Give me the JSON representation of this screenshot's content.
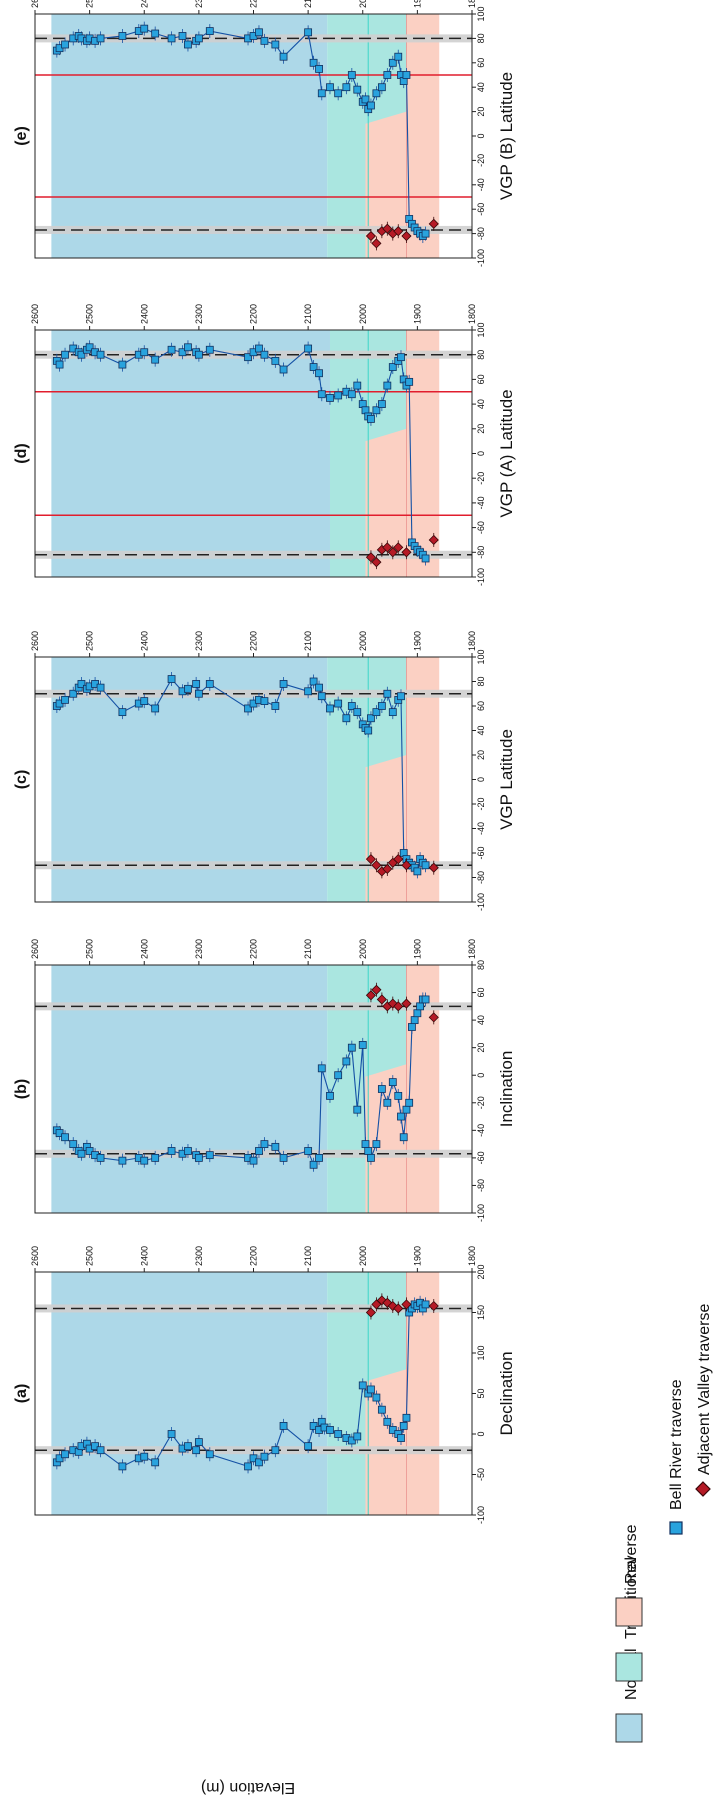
{
  "figure": {
    "y_axis_label": "Elevation (m)",
    "colors": {
      "normal": "#add8e8",
      "transitional": "#aae6e0",
      "reverse": "#fbd0c3",
      "bell": "#29a3de",
      "bell_edge": "#12305e",
      "bell_line": "#1451a5",
      "adjacent": "#b51a26",
      "adjacent_edge": "#3a0709",
      "red_line": "#e11d2d",
      "cyan_line": "#3cd5c8",
      "grey_band": "#cfcfcf"
    },
    "legend": {
      "zones": [
        {
          "label": "Normal",
          "color": "#add8e8"
        },
        {
          "label": "Transitional",
          "color": "#aae6e0"
        },
        {
          "label": "Reverse",
          "color": "#fbd0c3"
        }
      ],
      "series": [
        {
          "label": "Bell River traverse",
          "marker": "square",
          "color": "#29a3de"
        },
        {
          "label": "Adjacent Valley traverse",
          "marker": "diamond",
          "color": "#b51a26"
        }
      ]
    }
  },
  "chart_data": [
    {
      "type": "scatter",
      "panel_label": "(a)",
      "xlabel": "Declination",
      "ylabel": "Elevation (m)",
      "xlim": [
        -100,
        200
      ],
      "xticks": [
        -100,
        -50,
        0,
        50,
        100,
        150,
        200
      ],
      "ylim": [
        1800,
        2600
      ],
      "yticks": [
        1800,
        1900,
        2000,
        2100,
        2200,
        2300,
        2400,
        2500,
        2600
      ],
      "zones": [
        {
          "name": "Normal",
          "from": 2065,
          "to": 2570
        },
        {
          "name": "Transitional",
          "from": 1920,
          "to": 2065
        },
        {
          "name": "Reverse",
          "from": 1860,
          "to": 1995
        }
      ],
      "reference_lines": [
        {
          "value": -20,
          "style": "dashed"
        },
        {
          "value": 155,
          "style": "dashed"
        }
      ],
      "series": [
        {
          "name": "Bell River traverse",
          "marker": "square",
          "x": [
            -35,
            -30,
            -25,
            -20,
            -22,
            -15,
            -12,
            -18,
            -15,
            -20,
            -40,
            -30,
            -28,
            -35,
            0,
            -18,
            -15,
            -20,
            -10,
            -25,
            -40,
            -30,
            -35,
            -28,
            -20,
            10,
            -15,
            10,
            5,
            15,
            8,
            5,
            0,
            -5,
            -8,
            -3,
            60,
            50,
            55,
            45,
            30,
            15,
            5,
            0,
            -5,
            10,
            20,
            150,
            155,
            160,
            158,
            162,
            155,
            160
          ],
          "y": [
            2560,
            2555,
            2545,
            2530,
            2520,
            2515,
            2505,
            2500,
            2490,
            2480,
            2440,
            2410,
            2400,
            2380,
            2350,
            2330,
            2320,
            2305,
            2300,
            2280,
            2210,
            2200,
            2190,
            2180,
            2160,
            2145,
            2100,
            2090,
            2080,
            2075,
            2070,
            2060,
            2045,
            2030,
            2020,
            2010,
            2000,
            1990,
            1985,
            1975,
            1965,
            1955,
            1945,
            1935,
            1930,
            1925,
            1920,
            1915,
            1910,
            1905,
            1900,
            1895,
            1890,
            1885
          ]
        },
        {
          "name": "Adjacent Valley traverse",
          "marker": "diamond",
          "x": [
            150,
            160,
            165,
            162,
            158,
            155,
            160,
            158
          ],
          "y": [
            1985,
            1975,
            1965,
            1955,
            1945,
            1935,
            1920,
            1870
          ]
        }
      ]
    },
    {
      "type": "scatter",
      "panel_label": "(b)",
      "xlabel": "Inclination",
      "ylabel": "Elevation (m)",
      "xlim": [
        -100,
        80
      ],
      "xticks": [
        -100,
        -80,
        -60,
        -40,
        -20,
        0,
        20,
        40,
        60,
        80
      ],
      "ylim": [
        1800,
        2600
      ],
      "yticks": [
        1800,
        1900,
        2000,
        2100,
        2200,
        2300,
        2400,
        2500,
        2600
      ],
      "zones": [
        {
          "name": "Normal",
          "from": 2065,
          "to": 2570
        },
        {
          "name": "Transitional",
          "from": 1920,
          "to": 2065
        },
        {
          "name": "Reverse",
          "from": 1860,
          "to": 1995
        }
      ],
      "reference_lines": [
        {
          "value": -57,
          "style": "dashed"
        },
        {
          "value": 50,
          "style": "dashed"
        }
      ],
      "series": [
        {
          "name": "Bell River traverse",
          "marker": "square",
          "x": [
            -40,
            -42,
            -45,
            -50,
            -55,
            -57,
            -52,
            -55,
            -58,
            -60,
            -62,
            -60,
            -62,
            -60,
            -55,
            -57,
            -55,
            -58,
            -60,
            -58,
            -60,
            -62,
            -55,
            -50,
            -52,
            -60,
            -55,
            -65,
            -60,
            5,
            -15,
            0,
            10,
            20,
            -25,
            22,
            -50,
            -55,
            -60,
            -50,
            -10,
            -20,
            -5,
            -15,
            -30,
            -45,
            -25,
            -20,
            35,
            40,
            45,
            50,
            55,
            55
          ],
          "y": [
            2560,
            2555,
            2545,
            2530,
            2520,
            2515,
            2505,
            2500,
            2490,
            2480,
            2440,
            2410,
            2400,
            2380,
            2350,
            2330,
            2320,
            2305,
            2300,
            2280,
            2210,
            2200,
            2190,
            2180,
            2160,
            2145,
            2100,
            2090,
            2080,
            2075,
            2060,
            2045,
            2030,
            2020,
            2010,
            2000,
            1995,
            1990,
            1985,
            1975,
            1965,
            1955,
            1945,
            1935,
            1930,
            1925,
            1920,
            1915,
            1910,
            1905,
            1900,
            1895,
            1890,
            1885
          ]
        },
        {
          "name": "Adjacent Valley traverse",
          "marker": "diamond",
          "x": [
            58,
            62,
            55,
            50,
            52,
            50,
            52,
            42
          ],
          "y": [
            1985,
            1975,
            1965,
            1955,
            1945,
            1935,
            1920,
            1870
          ]
        }
      ]
    },
    {
      "type": "scatter",
      "panel_label": "(c)",
      "xlabel": "VGP Latitude",
      "ylabel": "Elevation (m)",
      "xlim": [
        -100,
        100
      ],
      "xticks": [
        -100,
        -80,
        -60,
        -40,
        -20,
        0,
        20,
        40,
        60,
        80,
        100
      ],
      "ylim": [
        1800,
        2600
      ],
      "yticks": [
        1800,
        1900,
        2000,
        2100,
        2200,
        2300,
        2400,
        2500,
        2600
      ],
      "zones": [
        {
          "name": "Normal",
          "from": 2065,
          "to": 2570
        },
        {
          "name": "Transitional",
          "from": 1920,
          "to": 2065
        },
        {
          "name": "Reverse",
          "from": 1860,
          "to": 1995
        }
      ],
      "reference_lines": [
        {
          "value": -70,
          "style": "dashed"
        },
        {
          "value": 70,
          "style": "dashed"
        }
      ],
      "series": [
        {
          "name": "Bell River traverse",
          "marker": "square",
          "x": [
            60,
            62,
            65,
            70,
            75,
            78,
            74,
            76,
            78,
            75,
            55,
            62,
            64,
            58,
            82,
            72,
            74,
            78,
            70,
            78,
            58,
            62,
            65,
            64,
            60,
            78,
            72,
            80,
            75,
            68,
            58,
            62,
            50,
            60,
            55,
            45,
            42,
            40,
            50,
            55,
            60,
            70,
            55,
            65,
            68,
            -60,
            -65,
            -68,
            -70,
            -72,
            -75,
            -65,
            -68,
            -70
          ],
          "y": [
            2560,
            2555,
            2545,
            2530,
            2520,
            2515,
            2505,
            2500,
            2490,
            2480,
            2440,
            2410,
            2400,
            2380,
            2350,
            2330,
            2320,
            2305,
            2300,
            2280,
            2210,
            2200,
            2190,
            2180,
            2160,
            2145,
            2100,
            2090,
            2080,
            2075,
            2060,
            2045,
            2030,
            2020,
            2010,
            2000,
            1995,
            1990,
            1985,
            1975,
            1965,
            1955,
            1945,
            1935,
            1930,
            1925,
            1920,
            1915,
            1910,
            1905,
            1900,
            1895,
            1890,
            1885
          ]
        },
        {
          "name": "Adjacent Valley traverse",
          "marker": "diamond",
          "x": [
            -65,
            -70,
            -75,
            -73,
            -68,
            -65,
            -70,
            -72
          ],
          "y": [
            1985,
            1975,
            1965,
            1955,
            1945,
            1935,
            1920,
            1870
          ]
        }
      ]
    },
    {
      "type": "scatter",
      "panel_label": "(d)",
      "xlabel": "VGP (A) Latitude",
      "ylabel": "Elevation (m)",
      "xlim": [
        -100,
        100
      ],
      "xticks": [
        -100,
        -80,
        -60,
        -40,
        -20,
        0,
        20,
        40,
        60,
        80,
        100
      ],
      "ylim": [
        1800,
        2600
      ],
      "yticks": [
        1800,
        1900,
        2000,
        2100,
        2200,
        2300,
        2400,
        2500,
        2600
      ],
      "zones": [
        {
          "name": "Normal",
          "from": 2060,
          "to": 2570
        },
        {
          "name": "Transitional",
          "from": 1920,
          "to": 2060
        },
        {
          "name": "Reverse",
          "from": 1860,
          "to": 1995
        }
      ],
      "reference_lines": [
        {
          "value": -82,
          "style": "dashed"
        },
        {
          "value": 80,
          "style": "dashed"
        },
        {
          "value": -50,
          "style": "red"
        },
        {
          "value": 50,
          "style": "red"
        }
      ],
      "series": [
        {
          "name": "Bell River traverse",
          "marker": "square",
          "x": [
            75,
            72,
            80,
            85,
            82,
            80,
            84,
            86,
            82,
            80,
            72,
            80,
            82,
            76,
            84,
            82,
            86,
            82,
            80,
            84,
            78,
            82,
            85,
            80,
            75,
            68,
            85,
            70,
            65,
            48,
            45,
            47,
            50,
            48,
            55,
            40,
            35,
            30,
            28,
            35,
            40,
            55,
            70,
            75,
            78,
            60,
            55,
            58,
            -72,
            -75,
            -78,
            -80,
            -82,
            -85
          ],
          "y": [
            2560,
            2555,
            2545,
            2530,
            2520,
            2515,
            2505,
            2500,
            2490,
            2480,
            2440,
            2410,
            2400,
            2380,
            2350,
            2330,
            2320,
            2305,
            2300,
            2280,
            2210,
            2200,
            2190,
            2180,
            2160,
            2145,
            2100,
            2090,
            2080,
            2075,
            2060,
            2045,
            2030,
            2020,
            2010,
            2000,
            1995,
            1990,
            1985,
            1975,
            1965,
            1955,
            1945,
            1935,
            1930,
            1925,
            1920,
            1915,
            1910,
            1905,
            1900,
            1895,
            1890,
            1885
          ]
        },
        {
          "name": "Adjacent Valley traverse",
          "marker": "diamond",
          "x": [
            -84,
            -88,
            -78,
            -76,
            -80,
            -76,
            -80,
            -70
          ],
          "y": [
            1985,
            1975,
            1965,
            1955,
            1945,
            1935,
            1920,
            1870
          ]
        }
      ]
    },
    {
      "type": "scatter",
      "panel_label": "(e)",
      "xlabel": "VGP (B) Latitude",
      "ylabel": "Elevation (m)",
      "xlim": [
        -100,
        100
      ],
      "xticks": [
        -100,
        -80,
        -60,
        -40,
        -20,
        0,
        20,
        40,
        60,
        80,
        100
      ],
      "ylim": [
        1800,
        2600
      ],
      "yticks": [
        1800,
        1900,
        2000,
        2100,
        2200,
        2300,
        2400,
        2500,
        2600
      ],
      "zones": [
        {
          "name": "Normal",
          "from": 2065,
          "to": 2570
        },
        {
          "name": "Transitional",
          "from": 1920,
          "to": 2065
        },
        {
          "name": "Reverse",
          "from": 1860,
          "to": 1995
        }
      ],
      "reference_lines": [
        {
          "value": -77,
          "style": "dashed"
        },
        {
          "value": 80,
          "style": "dashed"
        },
        {
          "value": -50,
          "style": "red"
        },
        {
          "value": 50,
          "style": "red"
        }
      ],
      "series": [
        {
          "name": "Bell River traverse",
          "marker": "square",
          "x": [
            70,
            72,
            75,
            80,
            82,
            80,
            78,
            80,
            78,
            80,
            82,
            86,
            88,
            84,
            80,
            82,
            75,
            78,
            80,
            86,
            80,
            82,
            85,
            78,
            75,
            65,
            85,
            60,
            55,
            35,
            40,
            35,
            40,
            50,
            38,
            28,
            30,
            22,
            25,
            35,
            40,
            50,
            60,
            65,
            50,
            45,
            50,
            -68,
            -72,
            -75,
            -78,
            -80,
            -82,
            -80
          ],
          "y": [
            2560,
            2555,
            2545,
            2530,
            2520,
            2515,
            2505,
            2500,
            2490,
            2480,
            2440,
            2410,
            2400,
            2380,
            2350,
            2330,
            2320,
            2305,
            2300,
            2280,
            2210,
            2200,
            2190,
            2180,
            2160,
            2145,
            2100,
            2090,
            2080,
            2075,
            2060,
            2045,
            2030,
            2020,
            2010,
            2000,
            1995,
            1990,
            1985,
            1975,
            1965,
            1955,
            1945,
            1935,
            1930,
            1925,
            1920,
            1915,
            1910,
            1905,
            1900,
            1895,
            1890,
            1885
          ]
        },
        {
          "name": "Adjacent Valley traverse",
          "marker": "diamond",
          "x": [
            -82,
            -88,
            -78,
            -76,
            -80,
            -78,
            -82,
            -72
          ],
          "y": [
            1985,
            1975,
            1965,
            1955,
            1945,
            1935,
            1920,
            1870
          ]
        }
      ]
    }
  ]
}
